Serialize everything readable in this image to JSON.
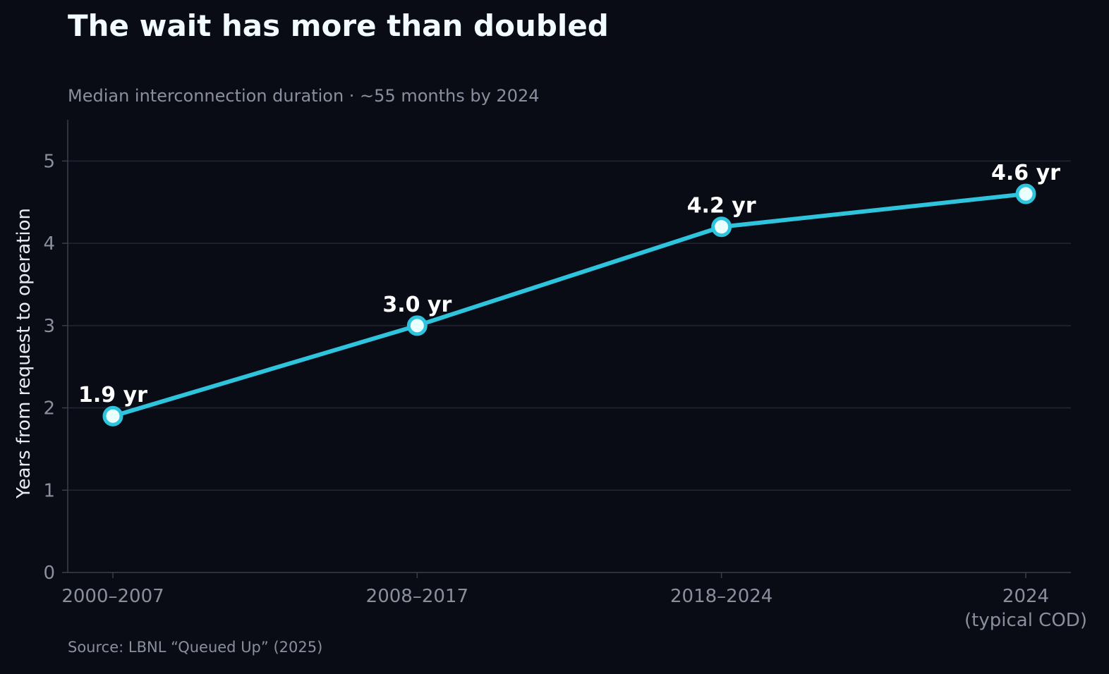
{
  "title": "The wait has more than doubled",
  "subtitle": "Median interconnection duration · ~55 months by 2024",
  "source": "Source: LBNL “Queued Up” (2025)",
  "colors": {
    "background": "#0a0c15",
    "line": "#2ec4de",
    "marker_fill": "#eaffff",
    "grid": "#232634",
    "axis": "#3a3e4c",
    "text_muted": "#8a8f9e",
    "text_bright": "#f2fbff"
  },
  "chart_data": {
    "type": "line",
    "title": "The wait has more than doubled",
    "subtitle": "Median interconnection duration · ~55 months by 2024",
    "xlabel": "",
    "ylabel": "Years from request to operation",
    "categories": [
      [
        "2000–2007"
      ],
      [
        "2008–2017"
      ],
      [
        "2018–2024"
      ],
      [
        "2024",
        "(typical COD)"
      ]
    ],
    "values": [
      1.9,
      3.0,
      4.2,
      4.6
    ],
    "data_labels": [
      "1.9 yr",
      "3.0 yr",
      "4.2 yr",
      "4.6 yr"
    ],
    "ylim": [
      0,
      5.5
    ],
    "yticks": [
      0,
      1,
      2,
      3,
      4,
      5
    ],
    "grid": true,
    "legend": "none"
  }
}
